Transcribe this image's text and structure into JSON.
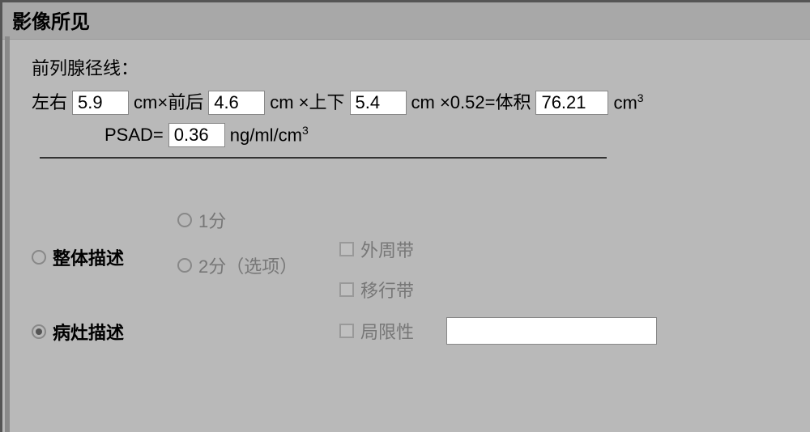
{
  "panel": {
    "title": "影像所见"
  },
  "measurements": {
    "section_label": "前列腺径线：",
    "lr_label": "左右",
    "lr_value": "5.9",
    "ap_label": "cm×前后",
    "ap_value": "4.6",
    "si_label": "cm ×上下",
    "si_value": "5.4",
    "coef_label": "cm ×0.52=体积",
    "volume_value": "76.21",
    "volume_unit": "cm",
    "volume_exp": "3",
    "psad_label": "PSAD=",
    "psad_value": "0.36",
    "psad_unit": "ng/ml/cm",
    "psad_exp": "3"
  },
  "description": {
    "overall_label": "整体描述",
    "lesion_label": "病灶描述",
    "score1_label": "1分",
    "score2_label": "2分（选项）",
    "peripheral_label": "外周带",
    "transition_label": "移行带",
    "localized_label": "局限性",
    "localized_value": ""
  },
  "colors": {
    "background": "#b9b9b9",
    "titlebar": "#a8a8a8",
    "border": "#555555",
    "input_bg": "#ffffff",
    "grey_text": "#777777"
  }
}
